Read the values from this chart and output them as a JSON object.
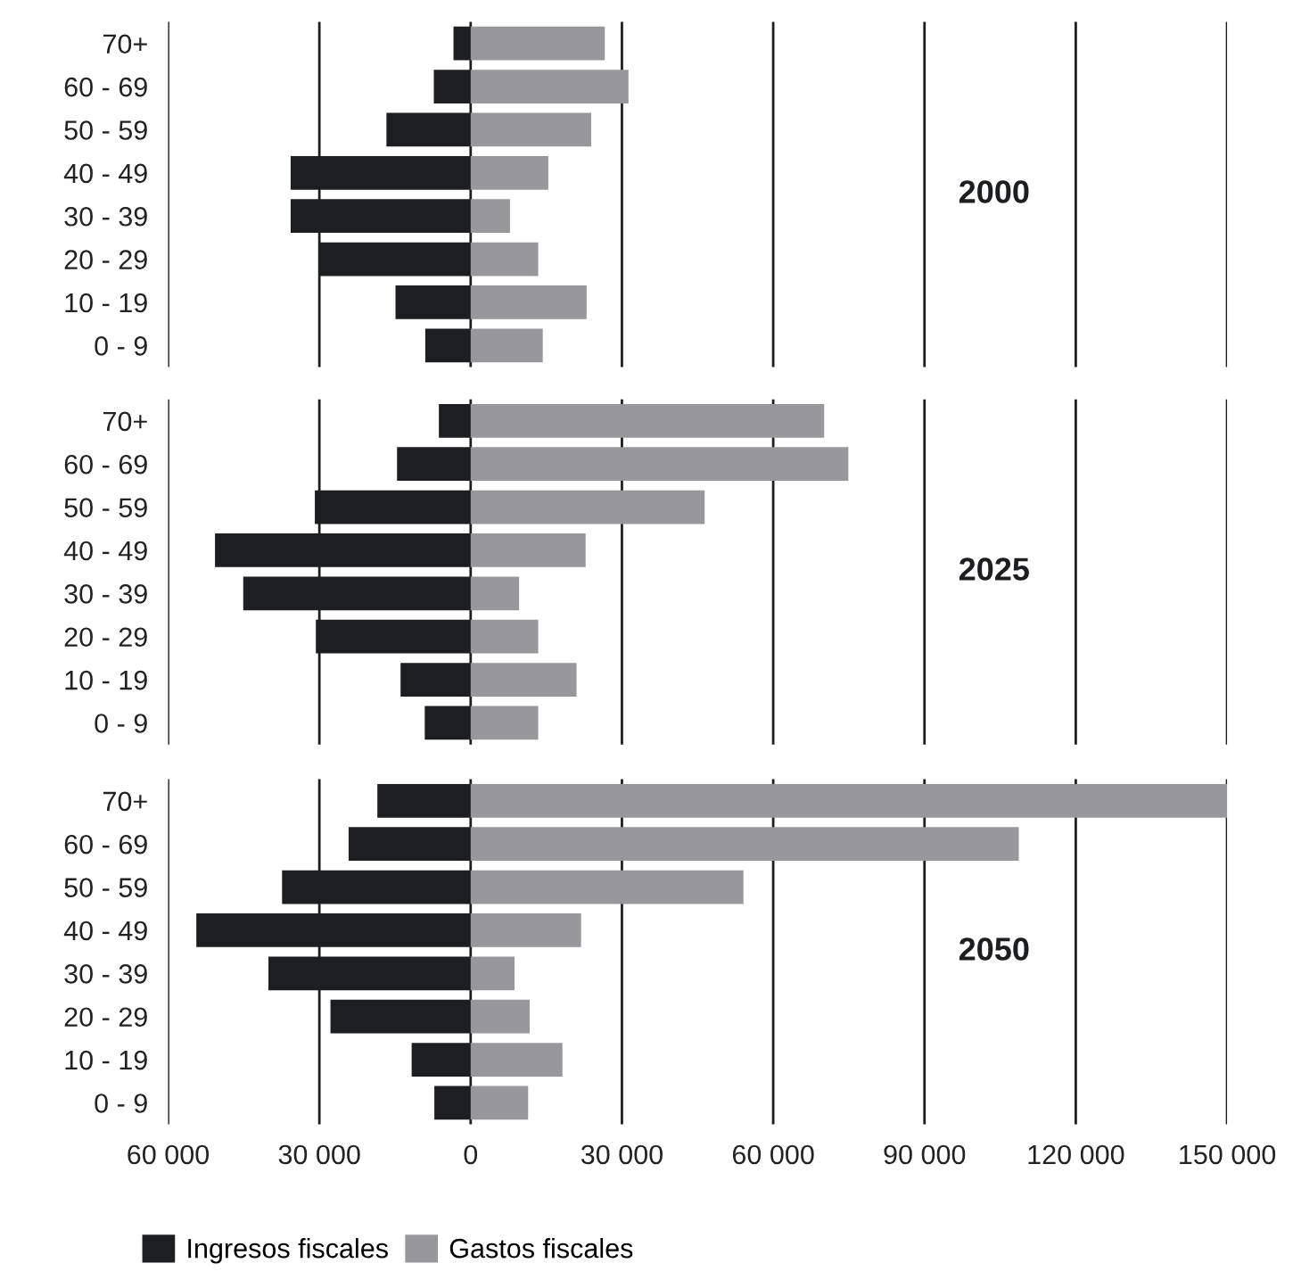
{
  "chart_data": [
    {
      "type": "bar",
      "orientation": "horizontal",
      "stacked": true,
      "categories": [
        "70+",
        "60 - 69",
        "50 - 59",
        "40 - 49",
        "30 - 39",
        "20 - 29",
        "10 - 19",
        "0 - 9"
      ],
      "series": [
        {
          "color": "#1d1e21",
          "values": [
            -3400,
            -7300,
            -16700,
            -35700,
            -35700,
            -29900,
            -14900,
            -9000
          ]
        },
        {
          "color": "#98979b",
          "values": [
            26600,
            31300,
            23900,
            15400,
            7800,
            13400,
            23000,
            14300
          ]
        }
      ],
      "annotations": [
        "2000"
      ],
      "xlim": [
        -60000,
        150000
      ],
      "grid": "x",
      "tick_labels": "y"
    },
    {
      "type": "bar",
      "orientation": "horizontal",
      "stacked": true,
      "categories": [
        "70+",
        "60 - 69",
        "50 - 59",
        "40 - 49",
        "30 - 39",
        "20 - 29",
        "10 - 19",
        "0 - 9"
      ],
      "series": [
        {
          "color": "#1d1e21",
          "values": [
            -6300,
            -14600,
            -30900,
            -50700,
            -45100,
            -30700,
            -13900,
            -9100
          ]
        },
        {
          "color": "#98979b",
          "values": [
            70100,
            74900,
            46400,
            22800,
            9600,
            13400,
            21000,
            13400
          ]
        }
      ],
      "annotations": [
        "2025"
      ],
      "xlim": [
        -60000,
        150000
      ],
      "grid": "x",
      "tick_labels": "y"
    },
    {
      "type": "bar",
      "orientation": "horizontal",
      "stacked": true,
      "categories": [
        "70+",
        "60 - 69",
        "50 - 59",
        "40 - 49",
        "30 - 39",
        "20 - 29",
        "10 - 19",
        "0 - 9"
      ],
      "series": [
        {
          "name": "Ingresos fiscales",
          "color": "#1d1e21",
          "values": [
            -18500,
            -24200,
            -37400,
            -54400,
            -40100,
            -27800,
            -11700,
            -7200
          ]
        },
        {
          "name": "Gastos fiscales",
          "color": "#98979b",
          "values": [
            150000,
            108700,
            54100,
            21900,
            8700,
            11700,
            18200,
            11400
          ]
        }
      ],
      "annotations": [
        "2050"
      ],
      "xlim": [
        -60000,
        150000
      ],
      "xticks": [
        {
          "value": -60000,
          "label": "60 000"
        },
        {
          "value": -30000,
          "label": "30 000"
        },
        0,
        {
          "value": 30000,
          "label": "30 000"
        },
        {
          "value": 60000,
          "label": "60 000"
        },
        {
          "value": 90000,
          "label": "90 000"
        },
        {
          "value": 120000,
          "label": "120 000"
        },
        {
          "value": 150000,
          "label": "150 000"
        }
      ],
      "grid": "x",
      "legend": "bottom"
    }
  ]
}
